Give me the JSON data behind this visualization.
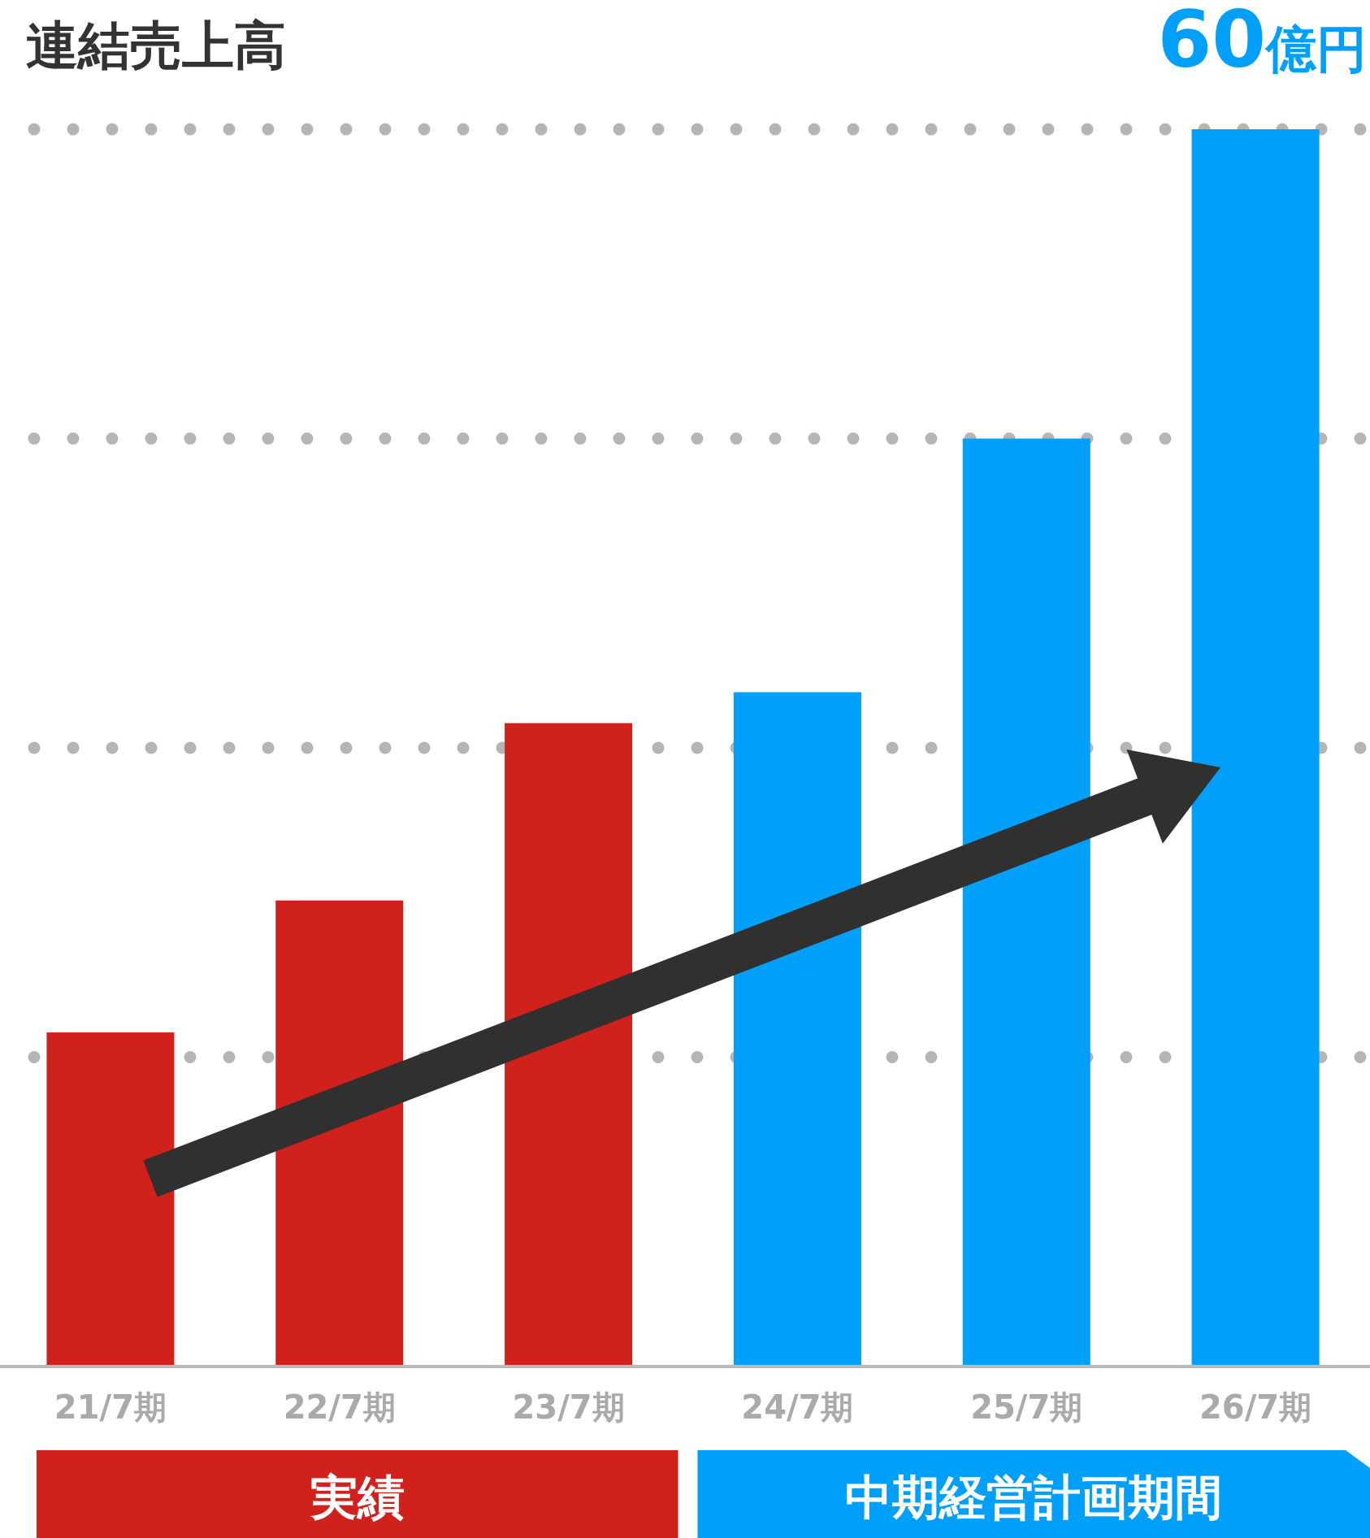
{
  "chart_data": {
    "type": "bar",
    "title": "連結売上高",
    "categories": [
      "21/7期",
      "22/7期",
      "23/7期",
      "24/7期",
      "25/7期",
      "26/7期"
    ],
    "values": [
      16.2,
      22.6,
      31.2,
      32.7,
      45.0,
      60
    ],
    "colors": [
      "#d0211c",
      "#d0211c",
      "#d0211c",
      "#00a0fa",
      "#00a0fa",
      "#00a0fa"
    ],
    "value_labels": [
      null,
      null,
      null,
      null,
      null,
      "60億円"
    ],
    "ylim": [
      0,
      60
    ],
    "yticks": [
      {
        "value": 0,
        "label": null
      },
      {
        "value": 15,
        "label": null
      },
      {
        "value": 30,
        "label": null
      },
      {
        "value": 45,
        "label": null
      },
      {
        "value": 60,
        "label": null
      }
    ],
    "grid": "y",
    "tick_labels": "x",
    "annotations": [
      "実績",
      "中期経営計画期間"
    ]
  }
}
